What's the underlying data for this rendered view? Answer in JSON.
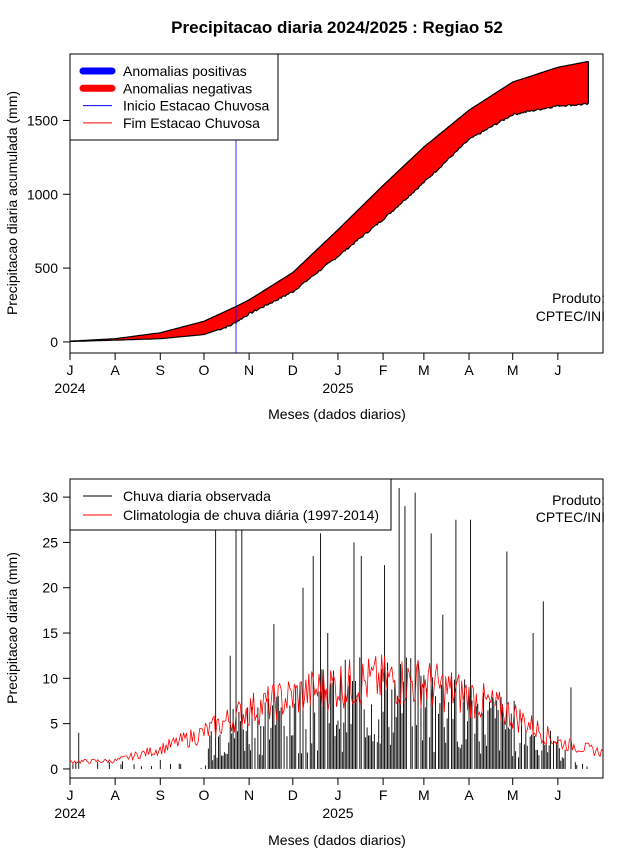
{
  "title": "Precipitacao diaria 2024/2025 : Regiao 52",
  "chart_data": [
    {
      "type": "area",
      "ylabel": "Precipitacao diaria acumulada (mm)",
      "xlabel": "Meses (dados diarios)",
      "x_ticks": [
        "J",
        "A",
        "S",
        "O",
        "N",
        "D",
        "J",
        "F",
        "M",
        "A",
        "M",
        "J"
      ],
      "year_labels": [
        "2024",
        "2025"
      ],
      "y_ticks": [
        0,
        500,
        1000,
        1500
      ],
      "ylim": [
        -75,
        1950
      ],
      "x_range_days": [
        0,
        366
      ],
      "legend": {
        "position": "top-left",
        "items": [
          {
            "label": "Anomalias positivas",
            "color": "#0000ff",
            "style": "thick"
          },
          {
            "label": "Anomalias negativas",
            "color": "#ff0000",
            "style": "thick"
          },
          {
            "label": "Inicio Estacao Chuvosa",
            "color": "#0000ff",
            "style": "thin"
          },
          {
            "label": "Fim Estacao Chuvosa",
            "color": "#ff0000",
            "style": "thin"
          }
        ]
      },
      "annotation": [
        "Produto:",
        "CPTEC/INI"
      ],
      "onset_day": 114,
      "climatology_cumulative": [
        {
          "day": 0,
          "mm": 5
        },
        {
          "day": 31,
          "mm": 22
        },
        {
          "day": 62,
          "mm": 62
        },
        {
          "day": 92,
          "mm": 140
        },
        {
          "day": 114,
          "mm": 240
        },
        {
          "day": 123,
          "mm": 285
        },
        {
          "day": 153,
          "mm": 470
        },
        {
          "day": 184,
          "mm": 760
        },
        {
          "day": 215,
          "mm": 1060
        },
        {
          "day": 243,
          "mm": 1320
        },
        {
          "day": 274,
          "mm": 1570
        },
        {
          "day": 304,
          "mm": 1760
        },
        {
          "day": 335,
          "mm": 1860
        },
        {
          "day": 356,
          "mm": 1900
        }
      ],
      "observed_cumulative": [
        {
          "day": 0,
          "mm": 3
        },
        {
          "day": 31,
          "mm": 12
        },
        {
          "day": 62,
          "mm": 22
        },
        {
          "day": 92,
          "mm": 50
        },
        {
          "day": 110,
          "mm": 110
        },
        {
          "day": 123,
          "mm": 190
        },
        {
          "day": 153,
          "mm": 340
        },
        {
          "day": 184,
          "mm": 580
        },
        {
          "day": 215,
          "mm": 830
        },
        {
          "day": 243,
          "mm": 1080
        },
        {
          "day": 274,
          "mm": 1370
        },
        {
          "day": 304,
          "mm": 1540
        },
        {
          "day": 335,
          "mm": 1600
        },
        {
          "day": 356,
          "mm": 1610
        }
      ]
    },
    {
      "type": "bar",
      "ylabel": "Precipitacao diaria (mm)",
      "xlabel": "Meses (dados diarios)",
      "x_ticks": [
        "J",
        "A",
        "S",
        "O",
        "N",
        "D",
        "J",
        "F",
        "M",
        "A",
        "M",
        "J"
      ],
      "year_labels": [
        "2024",
        "2025"
      ],
      "y_ticks": [
        0,
        5,
        10,
        15,
        20,
        25,
        30
      ],
      "ylim": [
        -1,
        32
      ],
      "x_range_days": [
        0,
        366
      ],
      "legend": {
        "position": "top-left",
        "items": [
          {
            "label": "Chuva diaria observada",
            "color": "#000000"
          },
          {
            "label": "Climatologia de chuva diária (1997-2014)",
            "color": "#ff0000"
          }
        ]
      },
      "annotation": [
        "Produto:",
        "CPTEC/INI"
      ],
      "climatology_daily": [
        {
          "day": 0,
          "mm": 0.8
        },
        {
          "day": 31,
          "mm": 0.9
        },
        {
          "day": 62,
          "mm": 2.2
        },
        {
          "day": 92,
          "mm": 4.0
        },
        {
          "day": 123,
          "mm": 6.5
        },
        {
          "day": 153,
          "mm": 8.0
        },
        {
          "day": 184,
          "mm": 9.3
        },
        {
          "day": 215,
          "mm": 9.8
        },
        {
          "day": 243,
          "mm": 9.5
        },
        {
          "day": 274,
          "mm": 8.0
        },
        {
          "day": 304,
          "mm": 6.0
        },
        {
          "day": 335,
          "mm": 3.0
        },
        {
          "day": 366,
          "mm": 1.8
        }
      ],
      "observed_peaks": [
        {
          "day": 6,
          "mm": 4.0
        },
        {
          "day": 62,
          "mm": 1.0
        },
        {
          "day": 100,
          "mm": 30.5
        },
        {
          "day": 110,
          "mm": 12.5
        },
        {
          "day": 114,
          "mm": 30.5
        },
        {
          "day": 118,
          "mm": 30.5
        },
        {
          "day": 140,
          "mm": 16.0
        },
        {
          "day": 160,
          "mm": 20.0
        },
        {
          "day": 167,
          "mm": 23.5
        },
        {
          "day": 172,
          "mm": 26.0
        },
        {
          "day": 177,
          "mm": 15.0
        },
        {
          "day": 195,
          "mm": 25.0
        },
        {
          "day": 200,
          "mm": 23.5
        },
        {
          "day": 216,
          "mm": 22.5
        },
        {
          "day": 226,
          "mm": 31.0
        },
        {
          "day": 230,
          "mm": 29.0
        },
        {
          "day": 237,
          "mm": 30.5
        },
        {
          "day": 248,
          "mm": 26.0
        },
        {
          "day": 256,
          "mm": 17.0
        },
        {
          "day": 265,
          "mm": 27.5
        },
        {
          "day": 275,
          "mm": 27.5
        },
        {
          "day": 300,
          "mm": 24.0
        },
        {
          "day": 318,
          "mm": 15.0
        },
        {
          "day": 325,
          "mm": 18.5
        },
        {
          "day": 344,
          "mm": 9.0
        }
      ]
    }
  ]
}
